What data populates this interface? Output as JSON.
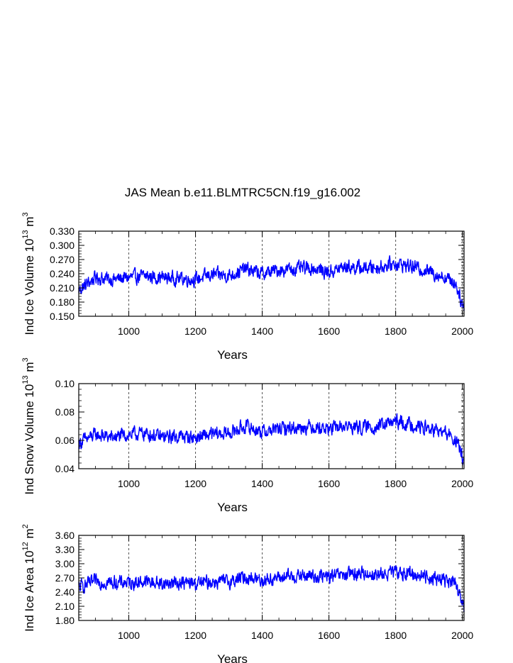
{
  "title": "JAS Mean b.e11.BLMTRC5CN.f19_g16.002",
  "series_color": "#0000ff",
  "chart_data": [
    {
      "type": "line",
      "title": "JAS Mean b.e11.BLMTRC5CN.f19_g16.002",
      "ylabel_text": "Ind Ice Volume 10",
      "ylabel_exp": "13",
      "ylabel_unit": "m",
      "ylabel_unit_exp": "3",
      "xlabel": "Years",
      "xlim": [
        850,
        2005
      ],
      "ylim": [
        0.15,
        0.33
      ],
      "yticks": [
        "0.150",
        "0.180",
        "0.210",
        "0.240",
        "0.270",
        "0.300",
        "0.330"
      ],
      "xticks": [
        "1000",
        "1200",
        "1400",
        "1600",
        "1800",
        "2000"
      ],
      "vgrid": [
        1000,
        1200,
        1400,
        1600,
        1800,
        2000
      ],
      "series": {
        "name": "Ind Ice Volume",
        "x": [
          850,
          900,
          950,
          1000,
          1050,
          1100,
          1150,
          1200,
          1250,
          1300,
          1350,
          1400,
          1450,
          1500,
          1550,
          1600,
          1650,
          1700,
          1750,
          1800,
          1850,
          1900,
          1950,
          1980,
          2005
        ],
        "y": [
          0.205,
          0.232,
          0.228,
          0.232,
          0.235,
          0.232,
          0.23,
          0.228,
          0.238,
          0.236,
          0.25,
          0.24,
          0.248,
          0.25,
          0.252,
          0.243,
          0.255,
          0.252,
          0.254,
          0.262,
          0.255,
          0.245,
          0.232,
          0.22,
          0.165
        ]
      }
    },
    {
      "type": "line",
      "ylabel_text": "Ind Snow Volume 10",
      "ylabel_exp": "13",
      "ylabel_unit": "m",
      "ylabel_unit_exp": "3",
      "xlabel": "Years",
      "xlim": [
        850,
        2005
      ],
      "ylim": [
        0.04,
        0.1
      ],
      "yticks": [
        "0.04",
        "0.06",
        "0.08",
        "0.10"
      ],
      "xticks": [
        "1000",
        "1200",
        "1400",
        "1600",
        "1800",
        "2000"
      ],
      "vgrid": [
        1000,
        1200,
        1400,
        1600,
        1800,
        2000
      ],
      "series": {
        "name": "Ind Snow Volume",
        "x": [
          850,
          900,
          950,
          1000,
          1050,
          1100,
          1150,
          1200,
          1250,
          1300,
          1350,
          1400,
          1450,
          1500,
          1550,
          1600,
          1650,
          1700,
          1750,
          1800,
          1850,
          1900,
          1950,
          1980,
          2005
        ],
        "y": [
          0.058,
          0.064,
          0.062,
          0.064,
          0.065,
          0.062,
          0.063,
          0.062,
          0.064,
          0.065,
          0.07,
          0.066,
          0.068,
          0.069,
          0.07,
          0.068,
          0.07,
          0.069,
          0.07,
          0.073,
          0.071,
          0.068,
          0.065,
          0.06,
          0.046
        ]
      }
    },
    {
      "type": "line",
      "ylabel_text": "Ind Ice Area 10",
      "ylabel_exp": "12",
      "ylabel_unit": "m",
      "ylabel_unit_exp": "2",
      "xlabel": "Years",
      "xlim": [
        850,
        2005
      ],
      "ylim": [
        1.8,
        3.6
      ],
      "yticks": [
        "1.80",
        "2.10",
        "2.40",
        "2.70",
        "3.00",
        "3.30",
        "3.60"
      ],
      "xticks": [
        "1000",
        "1200",
        "1400",
        "1600",
        "1800",
        "2000"
      ],
      "vgrid": [
        1000,
        1200,
        1400,
        1600,
        1800,
        2000
      ],
      "series": {
        "name": "Ind Ice Area",
        "x": [
          850,
          900,
          950,
          1000,
          1050,
          1100,
          1150,
          1200,
          1250,
          1300,
          1350,
          1400,
          1450,
          1500,
          1550,
          1600,
          1650,
          1700,
          1750,
          1800,
          1850,
          1900,
          1950,
          1980,
          2005
        ],
        "y": [
          2.5,
          2.62,
          2.6,
          2.6,
          2.62,
          2.58,
          2.6,
          2.58,
          2.62,
          2.62,
          2.72,
          2.66,
          2.7,
          2.74,
          2.74,
          2.72,
          2.76,
          2.8,
          2.76,
          2.82,
          2.78,
          2.72,
          2.66,
          2.55,
          2.05
        ]
      }
    }
  ]
}
